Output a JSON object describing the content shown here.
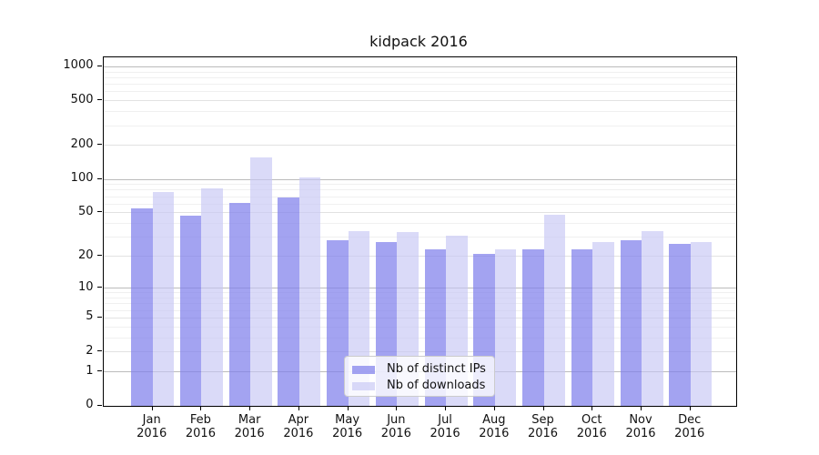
{
  "title": "kidpack 2016",
  "legend": {
    "items": [
      {
        "label": "Nb of distinct IPs",
        "series_key": "ips"
      },
      {
        "label": "Nb of downloads",
        "series_key": "downloads"
      }
    ]
  },
  "colors": {
    "ips": "rgba(128,128,235,0.72)",
    "downloads": "rgba(198,198,245,0.65)",
    "grid_decade": "#bbbbbb",
    "grid_labeled": "#e2e2e2",
    "grid_minor": "#f0f0f0",
    "axis": "#000000"
  },
  "axes": {
    "y_tick_labels": [
      "0",
      "1",
      "2",
      "5",
      "10",
      "20",
      "50",
      "100",
      "200",
      "500",
      "1000"
    ],
    "y_tick_values": [
      0,
      1,
      2,
      5,
      10,
      20,
      50,
      100,
      200,
      500,
      1000
    ],
    "y_minor_values": [
      3,
      4,
      6,
      7,
      8,
      9,
      30,
      40,
      60,
      70,
      80,
      90,
      300,
      400,
      600,
      700,
      800,
      900
    ],
    "x_months": [
      "Jan",
      "Feb",
      "Mar",
      "Apr",
      "May",
      "Jun",
      "Jul",
      "Aug",
      "Sep",
      "Oct",
      "Nov",
      "Dec"
    ],
    "x_year": "2016"
  },
  "chart_data": {
    "type": "bar",
    "title": "kidpack 2016",
    "categories": [
      "Jan 2016",
      "Feb 2016",
      "Mar 2016",
      "Apr 2016",
      "May 2016",
      "Jun 2016",
      "Jul 2016",
      "Aug 2016",
      "Sep 2016",
      "Oct 2016",
      "Nov 2016",
      "Dec 2016"
    ],
    "series": [
      {
        "name": "Nb of distinct IPs",
        "values": [
          54,
          47,
          61,
          68,
          28,
          27,
          23,
          21,
          23,
          23,
          28,
          26
        ]
      },
      {
        "name": "Nb of downloads",
        "values": [
          77,
          82,
          155,
          103,
          34,
          33,
          31,
          23,
          48,
          27,
          34,
          27
        ]
      }
    ],
    "xlabel": "",
    "ylabel": "",
    "yscale": "log1p",
    "ylim": [
      0,
      1200
    ],
    "y_ticks": [
      0,
      1,
      2,
      5,
      10,
      20,
      50,
      100,
      200,
      500,
      1000
    ],
    "grid": true,
    "legend_position": "lower center-right inside plot"
  }
}
